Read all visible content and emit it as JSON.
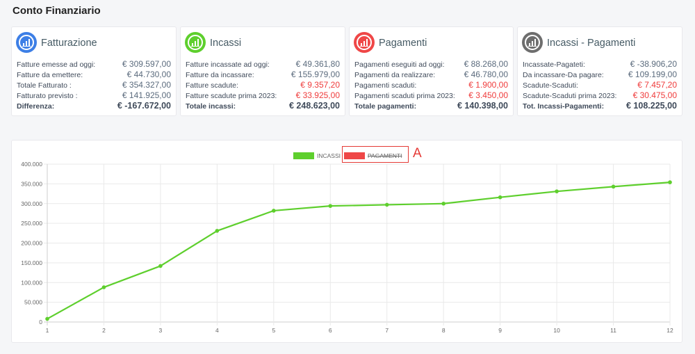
{
  "page_title": "Conto Finanziario",
  "colors": {
    "fatturazione": "#3d7fe6",
    "incassi": "#5ecf2d",
    "pagamenti": "#ef4747",
    "differenza": "#6e6e6e",
    "red_value": "#ef3b3b",
    "line": "#5ecf2d"
  },
  "cards": [
    {
      "title": "Fatturazione",
      "icon": "bar-chart-icon",
      "rows": [
        {
          "label": "Fatture emesse ad oggi:",
          "value": "€ 309.597,00"
        },
        {
          "label": "Fatture da emettere:",
          "value": "€ 44.730,00"
        },
        {
          "label": "Totale Fatturato :",
          "value": "€ 354.327,00"
        },
        {
          "label": "Fatturato previsto :",
          "value": "€ 141.925,00"
        },
        {
          "label": "Differenza:",
          "value": "€ -167.672,00"
        }
      ]
    },
    {
      "title": "Incassi",
      "icon": "bar-chart-icon",
      "rows": [
        {
          "label": "Fatture incassate ad oggi:",
          "value": "€ 49.361,80"
        },
        {
          "label": "Fatture da incassare:",
          "value": "€ 155.979,00"
        },
        {
          "label": "Fatture scadute:",
          "value": "€ 9.357,20"
        },
        {
          "label": "Fatture scadute prima 2023:",
          "value": "€ 33.925,00"
        },
        {
          "label": "Totale incassi:",
          "value": "€ 248.623,00"
        }
      ]
    },
    {
      "title": "Pagamenti",
      "icon": "bar-chart-icon",
      "rows": [
        {
          "label": "Pagamenti eseguiti ad oggi:",
          "value": "€ 88.268,00"
        },
        {
          "label": "Pagamenti da realizzare:",
          "value": "€ 46.780,00"
        },
        {
          "label": "Pagamenti scaduti:",
          "value": "€ 1.900,00"
        },
        {
          "label": "Pagamenti scaduti prima 2023:",
          "value": "€ 3.450,00"
        },
        {
          "label": "Totale pagamenti:",
          "value": "€ 140.398,00"
        }
      ]
    },
    {
      "title": "Incassi - Pagamenti",
      "icon": "bar-chart-icon",
      "rows": [
        {
          "label": "Incassate-Pagateti:",
          "value": "€ -38.906,20"
        },
        {
          "label": "Da incassare-Da pagare:",
          "value": "€ 109.199,00"
        },
        {
          "label": "Scadute-Scaduti:",
          "value": "€ 7.457,20"
        },
        {
          "label": "Scadute-Scaduti prima 2023:",
          "value": "€ 30.475,00"
        },
        {
          "label": "Tot. Incassi-Pagamenti:",
          "value": "€ 108.225,00"
        }
      ]
    }
  ],
  "legend": {
    "incassi_label": "INCASSI",
    "pagamenti_label": "PAGAMENTI",
    "pagamenti_hidden": true
  },
  "annotation": {
    "letter": "A"
  },
  "chart_data": {
    "type": "line",
    "x": [
      1,
      2,
      3,
      4,
      5,
      6,
      7,
      8,
      9,
      10,
      11,
      12
    ],
    "series": [
      {
        "name": "INCASSI",
        "values": [
          8000,
          88000,
          142000,
          231000,
          282000,
          294000,
          297000,
          300000,
          316000,
          331000,
          343000,
          354000
        ]
      }
    ],
    "ylim": [
      0,
      400000
    ],
    "yticks": [
      "0",
      "50.000",
      "100.000",
      "150.000",
      "200.000",
      "250.000",
      "300.000",
      "350.000",
      "400.000"
    ],
    "xticks": [
      "1",
      "2",
      "3",
      "4",
      "5",
      "6",
      "7",
      "8",
      "9",
      "10",
      "11",
      "12"
    ],
    "grid": true,
    "legend_position": "top-center"
  }
}
